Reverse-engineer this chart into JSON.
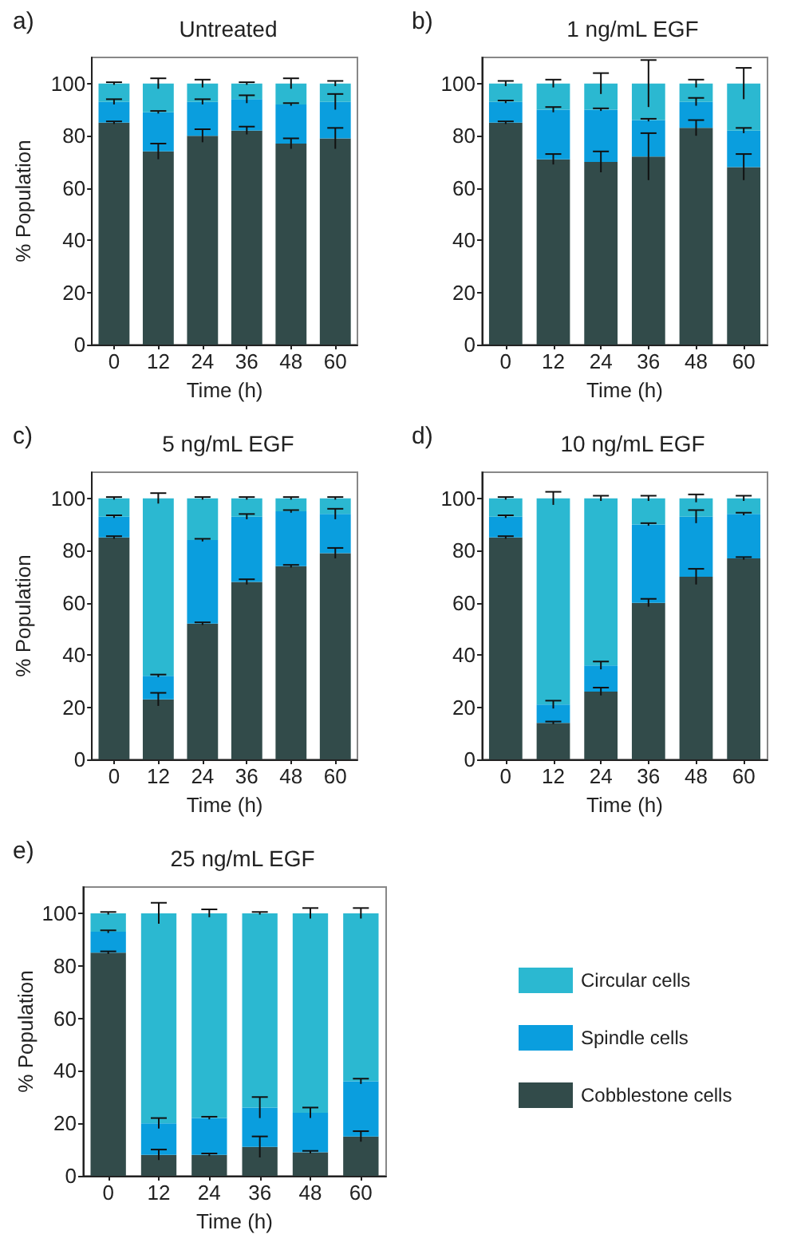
{
  "chart_data": [
    {
      "type": "bar",
      "stacked": true,
      "title": "Untreated",
      "annotations": [
        "a)"
      ],
      "xlabel": "Time (h)",
      "ylabel": "% Population",
      "categories": [
        "0",
        "12",
        "24",
        "36",
        "48",
        "60"
      ],
      "ylim": [
        0,
        110
      ],
      "yticks": [
        0,
        20,
        40,
        60,
        80,
        100
      ],
      "grid": false,
      "legend": false,
      "series": [
        {
          "color": "#324b4a",
          "values": [
            85,
            74,
            80,
            82,
            77,
            79
          ],
          "errors": [
            0.5,
            3,
            2.5,
            1.5,
            2,
            4
          ]
        },
        {
          "color": "#0a9ede",
          "values": [
            8,
            15,
            13,
            12,
            15,
            14
          ],
          "errors": [
            1,
            0.5,
            1,
            1.5,
            0.5,
            3
          ]
        },
        {
          "color": "#2bb8d1",
          "values": [
            7,
            11,
            7,
            6,
            8,
            7
          ],
          "errors": [
            0.5,
            2,
            1.5,
            0.5,
            2,
            1
          ]
        }
      ]
    },
    {
      "type": "bar",
      "stacked": true,
      "title": "1 ng/mL EGF",
      "annotations": [
        "b)"
      ],
      "xlabel": "Time (h)",
      "categories": [
        "0",
        "12",
        "24",
        "36",
        "48",
        "60"
      ],
      "ylim": [
        0,
        110
      ],
      "yticks": [
        0,
        20,
        40,
        60,
        80,
        100
      ],
      "grid": false,
      "legend": false,
      "series": [
        {
          "color": "#324b4a",
          "values": [
            85,
            71,
            70,
            72,
            83,
            68
          ],
          "errors": [
            0.5,
            2,
            4,
            9,
            3,
            5
          ]
        },
        {
          "color": "#0a9ede",
          "values": [
            8,
            19,
            20,
            14,
            10,
            14
          ],
          "errors": [
            0.5,
            1,
            0.5,
            0.5,
            1.5,
            1
          ]
        },
        {
          "color": "#2bb8d1",
          "values": [
            7,
            10,
            10,
            14,
            7,
            18
          ],
          "errors": [
            1,
            1.5,
            4,
            9,
            1.5,
            6
          ]
        }
      ]
    },
    {
      "type": "bar",
      "stacked": true,
      "title": "5 ng/mL EGF",
      "annotations": [
        "c)"
      ],
      "xlabel": "Time (h)",
      "ylabel": "% Population",
      "categories": [
        "0",
        "12",
        "24",
        "36",
        "48",
        "60"
      ],
      "ylim": [
        0,
        110
      ],
      "yticks": [
        0,
        20,
        40,
        60,
        80,
        100
      ],
      "grid": false,
      "legend": false,
      "series": [
        {
          "color": "#324b4a",
          "values": [
            85,
            23,
            52,
            68,
            74,
            79
          ],
          "errors": [
            0.5,
            2.5,
            0.5,
            1,
            0.5,
            2
          ]
        },
        {
          "color": "#0a9ede",
          "values": [
            8,
            9,
            32,
            25,
            21,
            15
          ],
          "errors": [
            0.5,
            0.5,
            0.5,
            1,
            0.5,
            2
          ]
        },
        {
          "color": "#2bb8d1",
          "values": [
            7,
            68,
            16,
            7,
            5,
            6
          ],
          "errors": [
            0.5,
            2,
            0.5,
            0.5,
            0.5,
            0.5
          ]
        }
      ]
    },
    {
      "type": "bar",
      "stacked": true,
      "title": "10 ng/mL EGF",
      "annotations": [
        "d)"
      ],
      "xlabel": "Time (h)",
      "categories": [
        "0",
        "12",
        "24",
        "36",
        "48",
        "60"
      ],
      "ylim": [
        0,
        110
      ],
      "yticks": [
        0,
        20,
        40,
        60,
        80,
        100
      ],
      "grid": false,
      "legend": false,
      "series": [
        {
          "color": "#324b4a",
          "values": [
            85,
            14,
            26,
            60,
            70,
            77
          ],
          "errors": [
            0.5,
            0.5,
            1.5,
            1.5,
            3,
            0.5
          ]
        },
        {
          "color": "#0a9ede",
          "values": [
            8,
            7,
            10,
            30,
            23,
            17
          ],
          "errors": [
            0.5,
            1.5,
            1.5,
            0.5,
            2.5,
            0.5
          ]
        },
        {
          "color": "#2bb8d1",
          "values": [
            7,
            79,
            64,
            10,
            7,
            6
          ],
          "errors": [
            0.5,
            2.5,
            1,
            1,
            1.5,
            1
          ]
        }
      ]
    },
    {
      "type": "bar",
      "stacked": true,
      "title": "25 ng/mL EGF",
      "annotations": [
        "e)"
      ],
      "xlabel": "Time (h)",
      "ylabel": "% Population",
      "categories": [
        "0",
        "12",
        "24",
        "36",
        "48",
        "60"
      ],
      "ylim": [
        0,
        110
      ],
      "yticks": [
        0,
        20,
        40,
        60,
        80,
        100
      ],
      "grid": false,
      "legend": "right",
      "series": [
        {
          "name": "Cobblestone cells",
          "color": "#324b4a",
          "values": [
            85,
            8,
            8,
            11,
            9,
            15
          ],
          "errors": [
            0.5,
            2,
            0.5,
            4,
            0.5,
            2
          ]
        },
        {
          "name": "Spindle cells",
          "color": "#0a9ede",
          "values": [
            8,
            12,
            14,
            15,
            15,
            21
          ],
          "errors": [
            0.5,
            2,
            0.5,
            4,
            2,
            1
          ]
        },
        {
          "name": "Circular cells",
          "color": "#2bb8d1",
          "values": [
            7,
            80,
            78,
            74,
            76,
            64
          ],
          "errors": [
            0.5,
            4,
            1.5,
            0.5,
            2,
            2
          ]
        }
      ]
    }
  ]
}
